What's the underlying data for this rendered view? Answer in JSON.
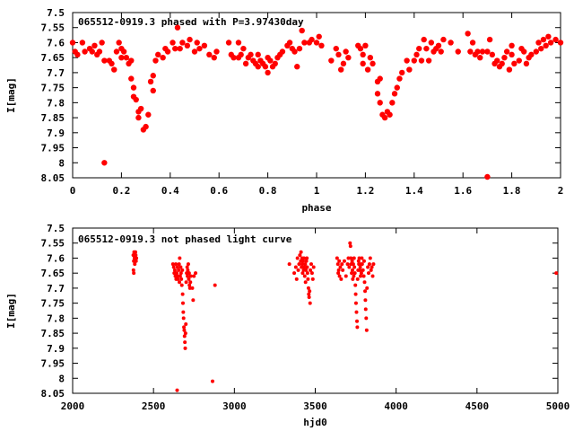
{
  "marker_color": "#ff0000",
  "chart_data": [
    {
      "type": "scatter",
      "title": "065512-0919.3 phased with P=3.97430day",
      "xlabel": "phase",
      "ylabel": "I[mag]",
      "xlim": [
        0,
        2
      ],
      "ylim": [
        7.5,
        8.05
      ],
      "y_inverted": true,
      "grid": false,
      "x_ticks": [
        "0",
        "0.2",
        "0.4",
        "0.6",
        "0.8",
        "1",
        "1.2",
        "1.4",
        "1.6",
        "1.8",
        "2"
      ],
      "y_ticks": [
        "7.5",
        "7.55",
        "7.6",
        "7.65",
        "7.7",
        "7.75",
        "7.8",
        "7.85",
        "7.9",
        "7.95",
        "8",
        "8.05"
      ],
      "points": [
        [
          0.0,
          7.6
        ],
        [
          0.01,
          7.63
        ],
        [
          0.02,
          7.64
        ],
        [
          0.04,
          7.6
        ],
        [
          0.05,
          7.63
        ],
        [
          0.07,
          7.62
        ],
        [
          0.08,
          7.63
        ],
        [
          0.09,
          7.61
        ],
        [
          0.1,
          7.64
        ],
        [
          0.11,
          7.63
        ],
        [
          0.12,
          7.6
        ],
        [
          0.13,
          7.66
        ],
        [
          0.13,
          8.0
        ],
        [
          0.15,
          7.66
        ],
        [
          0.16,
          7.67
        ],
        [
          0.17,
          7.69
        ],
        [
          0.18,
          7.63
        ],
        [
          0.19,
          7.6
        ],
        [
          0.2,
          7.62
        ],
        [
          0.2,
          7.65
        ],
        [
          0.21,
          7.63
        ],
        [
          0.22,
          7.65
        ],
        [
          0.23,
          7.67
        ],
        [
          0.24,
          7.66
        ],
        [
          0.24,
          7.72
        ],
        [
          0.25,
          7.75
        ],
        [
          0.25,
          7.78
        ],
        [
          0.26,
          7.79
        ],
        [
          0.27,
          7.83
        ],
        [
          0.27,
          7.85
        ],
        [
          0.28,
          7.82
        ],
        [
          0.29,
          7.89
        ],
        [
          0.3,
          7.88
        ],
        [
          0.31,
          7.84
        ],
        [
          0.32,
          7.73
        ],
        [
          0.33,
          7.76
        ],
        [
          0.33,
          7.71
        ],
        [
          0.34,
          7.66
        ],
        [
          0.35,
          7.64
        ],
        [
          0.37,
          7.65
        ],
        [
          0.38,
          7.62
        ],
        [
          0.39,
          7.63
        ],
        [
          0.41,
          7.6
        ],
        [
          0.42,
          7.62
        ],
        [
          0.43,
          7.55
        ],
        [
          0.44,
          7.62
        ],
        [
          0.45,
          7.6
        ],
        [
          0.47,
          7.61
        ],
        [
          0.48,
          7.59
        ],
        [
          0.5,
          7.63
        ],
        [
          0.51,
          7.6
        ],
        [
          0.52,
          7.62
        ],
        [
          0.54,
          7.61
        ],
        [
          0.56,
          7.64
        ],
        [
          0.58,
          7.65
        ],
        [
          0.59,
          7.63
        ],
        [
          0.64,
          7.6
        ],
        [
          0.65,
          7.64
        ],
        [
          0.66,
          7.65
        ],
        [
          0.68,
          7.6
        ],
        [
          0.68,
          7.65
        ],
        [
          0.69,
          7.64
        ],
        [
          0.7,
          7.62
        ],
        [
          0.71,
          7.67
        ],
        [
          0.72,
          7.65
        ],
        [
          0.73,
          7.64
        ],
        [
          0.74,
          7.66
        ],
        [
          0.75,
          7.67
        ],
        [
          0.76,
          7.68
        ],
        [
          0.76,
          7.64
        ],
        [
          0.77,
          7.66
        ],
        [
          0.78,
          7.67
        ],
        [
          0.79,
          7.68
        ],
        [
          0.8,
          7.7
        ],
        [
          0.8,
          7.65
        ],
        [
          0.81,
          7.66
        ],
        [
          0.82,
          7.68
        ],
        [
          0.83,
          7.67
        ],
        [
          0.84,
          7.65
        ],
        [
          0.85,
          7.64
        ],
        [
          0.86,
          7.63
        ],
        [
          0.88,
          7.61
        ],
        [
          0.89,
          7.6
        ],
        [
          0.9,
          7.62
        ],
        [
          0.91,
          7.63
        ],
        [
          0.92,
          7.68
        ],
        [
          0.93,
          7.62
        ],
        [
          0.94,
          7.56
        ],
        [
          0.95,
          7.6
        ],
        [
          0.97,
          7.6
        ],
        [
          0.98,
          7.59
        ],
        [
          1.0,
          7.6
        ],
        [
          1.01,
          7.58
        ],
        [
          1.02,
          7.61
        ],
        [
          1.06,
          7.66
        ],
        [
          1.08,
          7.62
        ],
        [
          1.09,
          7.64
        ],
        [
          1.1,
          7.69
        ],
        [
          1.11,
          7.67
        ],
        [
          1.12,
          7.63
        ],
        [
          1.13,
          7.65
        ],
        [
          1.17,
          7.61
        ],
        [
          1.18,
          7.62
        ],
        [
          1.19,
          7.64
        ],
        [
          1.19,
          7.67
        ],
        [
          1.2,
          7.61
        ],
        [
          1.21,
          7.69
        ],
        [
          1.22,
          7.65
        ],
        [
          1.23,
          7.67
        ],
        [
          1.25,
          7.73
        ],
        [
          1.25,
          7.77
        ],
        [
          1.26,
          7.8
        ],
        [
          1.26,
          7.72
        ],
        [
          1.27,
          7.84
        ],
        [
          1.28,
          7.85
        ],
        [
          1.29,
          7.83
        ],
        [
          1.3,
          7.84
        ],
        [
          1.31,
          7.8
        ],
        [
          1.32,
          7.77
        ],
        [
          1.33,
          7.75
        ],
        [
          1.34,
          7.72
        ],
        [
          1.35,
          7.7
        ],
        [
          1.37,
          7.66
        ],
        [
          1.38,
          7.69
        ],
        [
          1.4,
          7.66
        ],
        [
          1.41,
          7.64
        ],
        [
          1.42,
          7.62
        ],
        [
          1.43,
          7.66
        ],
        [
          1.44,
          7.59
        ],
        [
          1.45,
          7.62
        ],
        [
          1.46,
          7.66
        ],
        [
          1.47,
          7.6
        ],
        [
          1.48,
          7.63
        ],
        [
          1.49,
          7.62
        ],
        [
          1.5,
          7.61
        ],
        [
          1.51,
          7.63
        ],
        [
          1.52,
          7.59
        ],
        [
          1.55,
          7.6
        ],
        [
          1.58,
          7.63
        ],
        [
          1.62,
          7.57
        ],
        [
          1.63,
          7.63
        ],
        [
          1.64,
          7.6
        ],
        [
          1.65,
          7.64
        ],
        [
          1.66,
          7.63
        ],
        [
          1.67,
          7.65
        ],
        [
          1.68,
          7.63
        ],
        [
          1.7,
          8.05
        ],
        [
          1.7,
          7.63
        ],
        [
          1.71,
          7.59
        ],
        [
          1.72,
          7.64
        ],
        [
          1.73,
          7.67
        ],
        [
          1.74,
          7.66
        ],
        [
          1.75,
          7.68
        ],
        [
          1.76,
          7.67
        ],
        [
          1.77,
          7.65
        ],
        [
          1.78,
          7.63
        ],
        [
          1.79,
          7.69
        ],
        [
          1.8,
          7.61
        ],
        [
          1.8,
          7.64
        ],
        [
          1.81,
          7.67
        ],
        [
          1.83,
          7.66
        ],
        [
          1.84,
          7.62
        ],
        [
          1.85,
          7.63
        ],
        [
          1.86,
          7.67
        ],
        [
          1.87,
          7.65
        ],
        [
          1.88,
          7.64
        ],
        [
          1.9,
          7.63
        ],
        [
          1.91,
          7.6
        ],
        [
          1.92,
          7.62
        ],
        [
          1.93,
          7.59
        ],
        [
          1.94,
          7.61
        ],
        [
          1.95,
          7.58
        ],
        [
          1.96,
          7.6
        ],
        [
          1.98,
          7.59
        ],
        [
          2.0,
          7.6
        ]
      ]
    },
    {
      "type": "scatter",
      "title": "065512-0919.3 not phased light curve",
      "xlabel": "hjd0",
      "ylabel": "I[mag]",
      "xlim": [
        2000,
        5000
      ],
      "ylim": [
        7.5,
        8.05
      ],
      "y_inverted": true,
      "grid": false,
      "x_ticks": [
        "2000",
        "2500",
        "3000",
        "3500",
        "4000",
        "4500",
        "5000"
      ],
      "y_ticks": [
        "7.5",
        "7.55",
        "7.6",
        "7.65",
        "7.7",
        "7.75",
        "7.8",
        "7.85",
        "7.9",
        "7.95",
        "8",
        "8.05"
      ],
      "points": [
        [
          2375,
          7.59
        ],
        [
          2378,
          7.61
        ],
        [
          2380,
          7.58
        ],
        [
          2382,
          7.6
        ],
        [
          2384,
          7.62
        ],
        [
          2386,
          7.6
        ],
        [
          2388,
          7.58
        ],
        [
          2390,
          7.59
        ],
        [
          2392,
          7.61
        ],
        [
          2394,
          7.6
        ],
        [
          2376,
          7.64
        ],
        [
          2378,
          7.65
        ],
        [
          2620,
          7.62
        ],
        [
          2625,
          7.63
        ],
        [
          2628,
          7.65
        ],
        [
          2632,
          7.64
        ],
        [
          2635,
          7.66
        ],
        [
          2638,
          7.62
        ],
        [
          2640,
          7.67
        ],
        [
          2643,
          7.65
        ],
        [
          2646,
          8.04
        ],
        [
          2648,
          7.63
        ],
        [
          2650,
          7.67
        ],
        [
          2652,
          7.66
        ],
        [
          2655,
          7.64
        ],
        [
          2658,
          7.62
        ],
        [
          2660,
          7.68
        ],
        [
          2662,
          7.6
        ],
        [
          2665,
          7.66
        ],
        [
          2668,
          7.63
        ],
        [
          2670,
          7.65
        ],
        [
          2672,
          7.67
        ],
        [
          2675,
          7.69
        ],
        [
          2678,
          7.64
        ],
        [
          2680,
          7.72
        ],
        [
          2682,
          7.75
        ],
        [
          2684,
          7.78
        ],
        [
          2686,
          7.8
        ],
        [
          2688,
          7.83
        ],
        [
          2690,
          7.84
        ],
        [
          2692,
          7.86
        ],
        [
          2694,
          7.88
        ],
        [
          2696,
          7.9
        ],
        [
          2698,
          7.85
        ],
        [
          2700,
          7.82
        ],
        [
          2702,
          7.68
        ],
        [
          2705,
          7.65
        ],
        [
          2708,
          7.63
        ],
        [
          2710,
          7.66
        ],
        [
          2712,
          7.64
        ],
        [
          2715,
          7.62
        ],
        [
          2718,
          7.67
        ],
        [
          2720,
          7.65
        ],
        [
          2722,
          7.69
        ],
        [
          2725,
          7.7
        ],
        [
          2728,
          7.68
        ],
        [
          2730,
          7.66
        ],
        [
          2740,
          7.7
        ],
        [
          2745,
          7.74
        ],
        [
          2750,
          7.66
        ],
        [
          2760,
          7.65
        ],
        [
          2865,
          8.01
        ],
        [
          2880,
          7.69
        ],
        [
          3340,
          7.62
        ],
        [
          3370,
          7.65
        ],
        [
          3380,
          7.63
        ],
        [
          3385,
          7.67
        ],
        [
          3390,
          7.6
        ],
        [
          3395,
          7.64
        ],
        [
          3400,
          7.62
        ],
        [
          3405,
          7.59
        ],
        [
          3410,
          7.61
        ],
        [
          3412,
          7.58
        ],
        [
          3415,
          7.63
        ],
        [
          3418,
          7.6
        ],
        [
          3420,
          7.62
        ],
        [
          3422,
          7.65
        ],
        [
          3425,
          7.61
        ],
        [
          3428,
          7.64
        ],
        [
          3430,
          7.6
        ],
        [
          3432,
          7.63
        ],
        [
          3435,
          7.66
        ],
        [
          3438,
          7.62
        ],
        [
          3440,
          7.68
        ],
        [
          3442,
          7.64
        ],
        [
          3445,
          7.61
        ],
        [
          3448,
          7.6
        ],
        [
          3450,
          7.63
        ],
        [
          3452,
          7.65
        ],
        [
          3455,
          7.67
        ],
        [
          3458,
          7.7
        ],
        [
          3460,
          7.72
        ],
        [
          3462,
          7.73
        ],
        [
          3465,
          7.71
        ],
        [
          3468,
          7.75
        ],
        [
          3470,
          7.64
        ],
        [
          3475,
          7.62
        ],
        [
          3480,
          7.65
        ],
        [
          3485,
          7.67
        ],
        [
          3490,
          7.63
        ],
        [
          3635,
          7.6
        ],
        [
          3640,
          7.62
        ],
        [
          3642,
          7.65
        ],
        [
          3645,
          7.64
        ],
        [
          3648,
          7.61
        ],
        [
          3650,
          7.66
        ],
        [
          3655,
          7.63
        ],
        [
          3660,
          7.67
        ],
        [
          3665,
          7.62
        ],
        [
          3670,
          7.64
        ],
        [
          3680,
          7.61
        ],
        [
          3690,
          7.66
        ],
        [
          3700,
          7.62
        ],
        [
          3705,
          7.6
        ],
        [
          3710,
          7.63
        ],
        [
          3715,
          7.55
        ],
        [
          3718,
          7.56
        ],
        [
          3720,
          7.6
        ],
        [
          3722,
          7.62
        ],
        [
          3725,
          7.65
        ],
        [
          3728,
          7.61
        ],
        [
          3730,
          7.64
        ],
        [
          3732,
          7.67
        ],
        [
          3735,
          7.62
        ],
        [
          3738,
          7.66
        ],
        [
          3740,
          7.6
        ],
        [
          3742,
          7.63
        ],
        [
          3745,
          7.65
        ],
        [
          3748,
          7.69
        ],
        [
          3750,
          7.72
        ],
        [
          3752,
          7.75
        ],
        [
          3755,
          7.78
        ],
        [
          3758,
          7.81
        ],
        [
          3760,
          7.83
        ],
        [
          3762,
          7.67
        ],
        [
          3765,
          7.64
        ],
        [
          3768,
          7.61
        ],
        [
          3770,
          7.62
        ],
        [
          3772,
          7.6
        ],
        [
          3775,
          7.64
        ],
        [
          3778,
          7.63
        ],
        [
          3780,
          7.66
        ],
        [
          3782,
          7.62
        ],
        [
          3785,
          7.65
        ],
        [
          3788,
          7.6
        ],
        [
          3790,
          7.62
        ],
        [
          3795,
          7.64
        ],
        [
          3800,
          7.66
        ],
        [
          3802,
          7.61
        ],
        [
          3805,
          7.68
        ],
        [
          3808,
          7.71
        ],
        [
          3810,
          7.74
        ],
        [
          3812,
          7.77
        ],
        [
          3815,
          7.8
        ],
        [
          3818,
          7.84
        ],
        [
          3820,
          7.7
        ],
        [
          3825,
          7.63
        ],
        [
          3830,
          7.65
        ],
        [
          3835,
          7.62
        ],
        [
          3840,
          7.6
        ],
        [
          3845,
          7.64
        ],
        [
          3850,
          7.63
        ],
        [
          3855,
          7.66
        ],
        [
          3860,
          7.62
        ],
        [
          4990,
          7.65
        ]
      ]
    }
  ]
}
